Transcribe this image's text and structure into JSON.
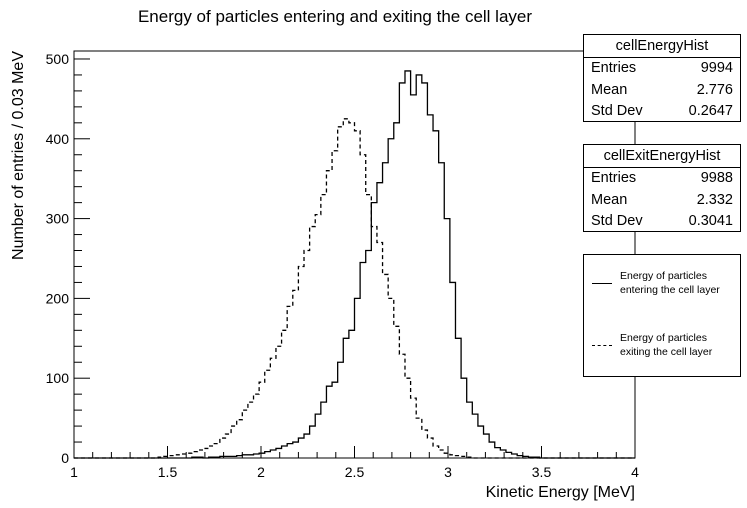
{
  "chart_data": {
    "type": "histogram",
    "title": "Energy of particles entering and exiting the cell layer",
    "xlabel": "Kinetic Energy [MeV]",
    "ylabel": "Number of entries / 0.03 MeV",
    "xlim": [
      1,
      4
    ],
    "ylim": [
      0,
      510
    ],
    "x_ticks": [
      "1",
      "1.5",
      "2",
      "2.5",
      "3",
      "3.5",
      "4"
    ],
    "y_ticks": [
      "0",
      "100",
      "200",
      "300",
      "400",
      "500"
    ],
    "bin_width": 0.03,
    "series": [
      {
        "name": "Energy of particles entering the cell layer",
        "style": "solid",
        "color": "#000000",
        "x_start": 1.0,
        "values": [
          0,
          0,
          0,
          0,
          0,
          0,
          0,
          0,
          0,
          0,
          0,
          0,
          0,
          0,
          0,
          0,
          0,
          0,
          0,
          0,
          0,
          1,
          1,
          0,
          1,
          1,
          2,
          2,
          2,
          3,
          4,
          4,
          5,
          6,
          8,
          10,
          12,
          15,
          18,
          20,
          25,
          30,
          40,
          55,
          70,
          90,
          95,
          120,
          150,
          160,
          200,
          245,
          260,
          320,
          345,
          370,
          400,
          420,
          470,
          485,
          455,
          480,
          470,
          430,
          410,
          370,
          300,
          220,
          150,
          100,
          70,
          55,
          40,
          30,
          20,
          13,
          10,
          7,
          5,
          3,
          2,
          1,
          1,
          0,
          0,
          0,
          0,
          0,
          0,
          0,
          0,
          0,
          0,
          0,
          0,
          0,
          0,
          0,
          0,
          0
        ]
      },
      {
        "name": "Energy of particles exiting the cell layer",
        "style": "dashed",
        "color": "#000000",
        "x_start": 1.0,
        "values": [
          0,
          0,
          0,
          0,
          0,
          0,
          0,
          0,
          0,
          0,
          0,
          0,
          0,
          0,
          0,
          1,
          2,
          3,
          4,
          5,
          6,
          8,
          10,
          12,
          15,
          18,
          25,
          30,
          40,
          48,
          60,
          70,
          80,
          95,
          110,
          125,
          140,
          160,
          190,
          210,
          240,
          260,
          290,
          305,
          330,
          360,
          385,
          415,
          425,
          420,
          410,
          380,
          330,
          290,
          270,
          230,
          200,
          165,
          130,
          100,
          75,
          50,
          35,
          25,
          15,
          10,
          6,
          4,
          3,
          2,
          1,
          0,
          0,
          0,
          0,
          0,
          0,
          0,
          0,
          0,
          0,
          0,
          0,
          0,
          0,
          0,
          0,
          0,
          0,
          0,
          0,
          0,
          0,
          0,
          0,
          0,
          0,
          0,
          0,
          0
        ]
      }
    ]
  },
  "stats": [
    {
      "name": "cellEnergyHist",
      "rows": [
        [
          "Entries",
          "9994"
        ],
        [
          "Mean",
          "2.776"
        ],
        [
          "Std Dev",
          "0.2647"
        ]
      ]
    },
    {
      "name": "cellExitEnergyHist",
      "rows": [
        [
          "Entries",
          "9988"
        ],
        [
          "Mean",
          "2.332"
        ],
        [
          "Std Dev",
          "0.3041"
        ]
      ]
    }
  ],
  "legend": {
    "entries": [
      {
        "line1": "Energy of particles",
        "line2": "entering the cell layer",
        "style": "solid"
      },
      {
        "line1": "Energy of particles",
        "line2": "exiting the cell layer",
        "style": "dashed"
      }
    ]
  }
}
